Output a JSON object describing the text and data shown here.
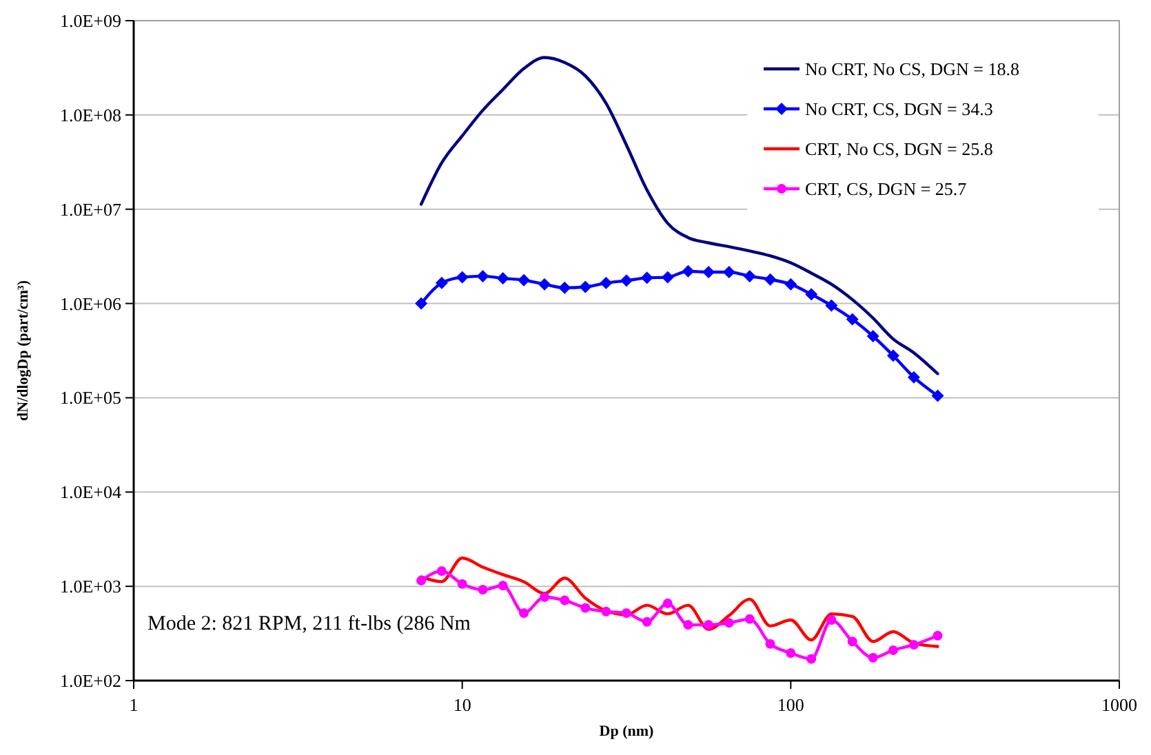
{
  "chart_data": {
    "type": "line",
    "xlabel": "Dp (nm)",
    "ylabel": "dN/dlogDp (part/cm³)",
    "log": "xy",
    "grid": "y",
    "legend": "top right",
    "xlim": [
      1,
      1000
    ],
    "xticks": [
      1,
      10,
      100,
      1000
    ],
    "ylim": [
      100,
      1000000000
    ],
    "yticks": [
      {
        "value": 100,
        "label": "1.0E+02"
      },
      {
        "value": 1000,
        "label": "1.0E+03"
      },
      {
        "value": 10000,
        "label": "1.0E+04"
      },
      {
        "value": 100000,
        "label": "1.0E+05"
      },
      {
        "value": 1000000,
        "label": "1.0E+06"
      },
      {
        "value": 10000000,
        "label": "1.0E+07"
      },
      {
        "value": 100000000,
        "label": "1.0E+08"
      },
      {
        "value": 1000000000,
        "label": "1.0E+09"
      }
    ],
    "x": [
      7.5,
      8.66,
      10,
      11.55,
      13.3,
      15.4,
      17.8,
      20.5,
      23.7,
      27.4,
      31.6,
      36.5,
      42.2,
      48.7,
      56.2,
      64.9,
      75,
      86.6,
      100,
      115.5,
      133,
      154,
      178,
      205,
      237,
      280
    ],
    "annotations": [
      "Mode 2: 821 RPM, 211 ft-lbs (286 Nm"
    ],
    "series": [
      {
        "name": "No CRT, No CS, DGN = 18.8",
        "color": "#000080",
        "marker": "none",
        "values": [
          11300000,
          31000000,
          60000000,
          112000000,
          186000000,
          310000000,
          407000000,
          360000000,
          260000000,
          133000000,
          48000000,
          16000000,
          7100000,
          5000000,
          4400000,
          4000000,
          3600000,
          3200000,
          2700000,
          2100000,
          1600000,
          1100000,
          700000,
          420000,
          300000,
          180000
        ]
      },
      {
        "name": "No CRT, CS, DGN = 34.3",
        "color": "#0000ff",
        "marker": "diamond",
        "values": [
          1000000,
          1650000,
          1900000,
          1950000,
          1850000,
          1770000,
          1600000,
          1470000,
          1500000,
          1650000,
          1750000,
          1870000,
          1900000,
          2200000,
          2150000,
          2150000,
          1950000,
          1800000,
          1600000,
          1250000,
          950000,
          680000,
          450000,
          280000,
          165000,
          105000
        ]
      },
      {
        "name": "CRT, No CS, DGN = 25.8",
        "color": "#ff0000",
        "marker": "none",
        "values": [
          1260,
          1120,
          2000,
          1600,
          1330,
          1120,
          840,
          1220,
          750,
          550,
          500,
          630,
          510,
          630,
          350,
          490,
          730,
          380,
          440,
          270,
          510,
          480,
          260,
          330,
          250,
          230
        ]
      },
      {
        "name": "CRT, CS, DGN = 25.7",
        "color": "#ff00ff",
        "marker": "circle",
        "values": [
          1150,
          1450,
          1060,
          920,
          1020,
          520,
          770,
          710,
          590,
          540,
          520,
          420,
          660,
          390,
          390,
          410,
          450,
          245,
          196,
          170,
          440,
          260,
          175,
          210,
          240,
          300
        ]
      }
    ]
  }
}
